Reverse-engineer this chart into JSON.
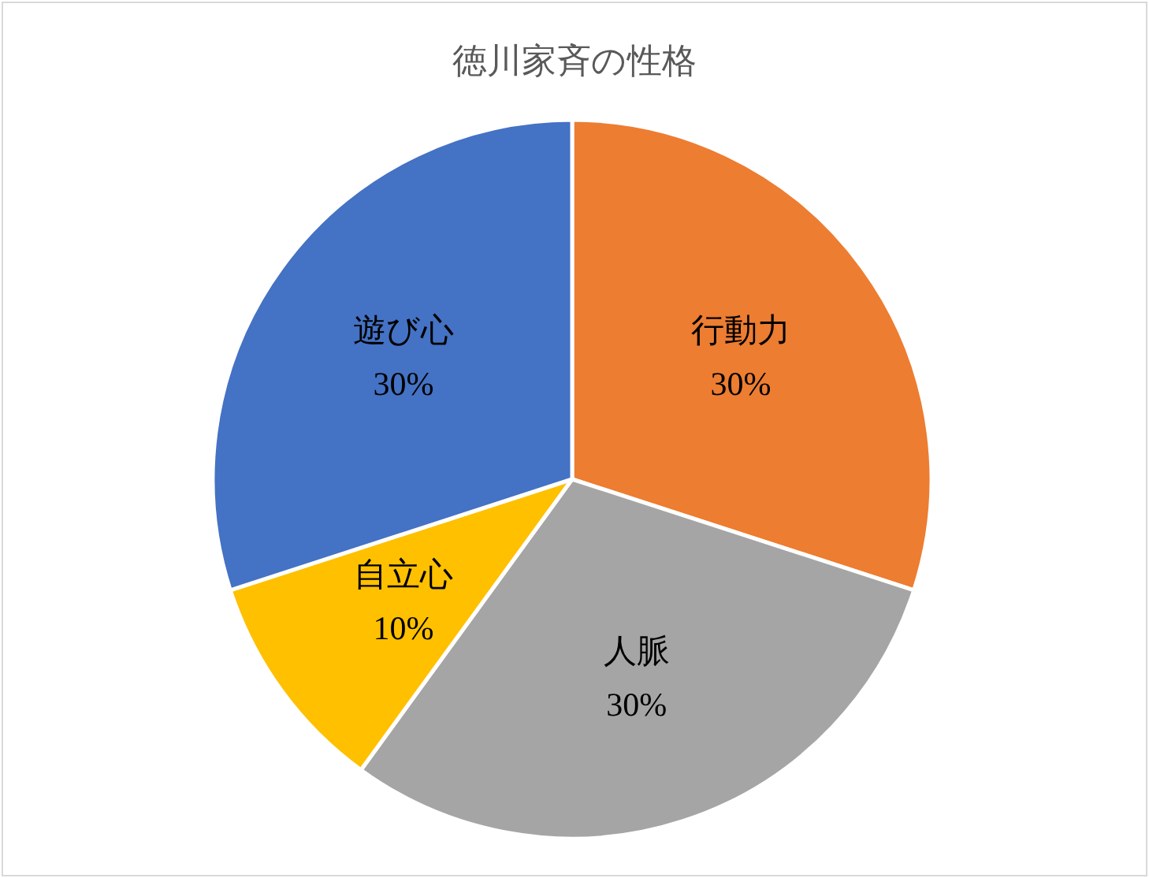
{
  "chart_data": {
    "type": "pie",
    "title": "徳川家斉の性格",
    "categories": [
      "行動力",
      "人脈",
      "自立心",
      "遊び心"
    ],
    "values": [
      30,
      30,
      10,
      30
    ],
    "value_labels": [
      "30%",
      "30%",
      "10%",
      "30%"
    ],
    "colors": [
      "#ed7d31",
      "#a5a5a5",
      "#ffc000",
      "#4472c4"
    ]
  }
}
